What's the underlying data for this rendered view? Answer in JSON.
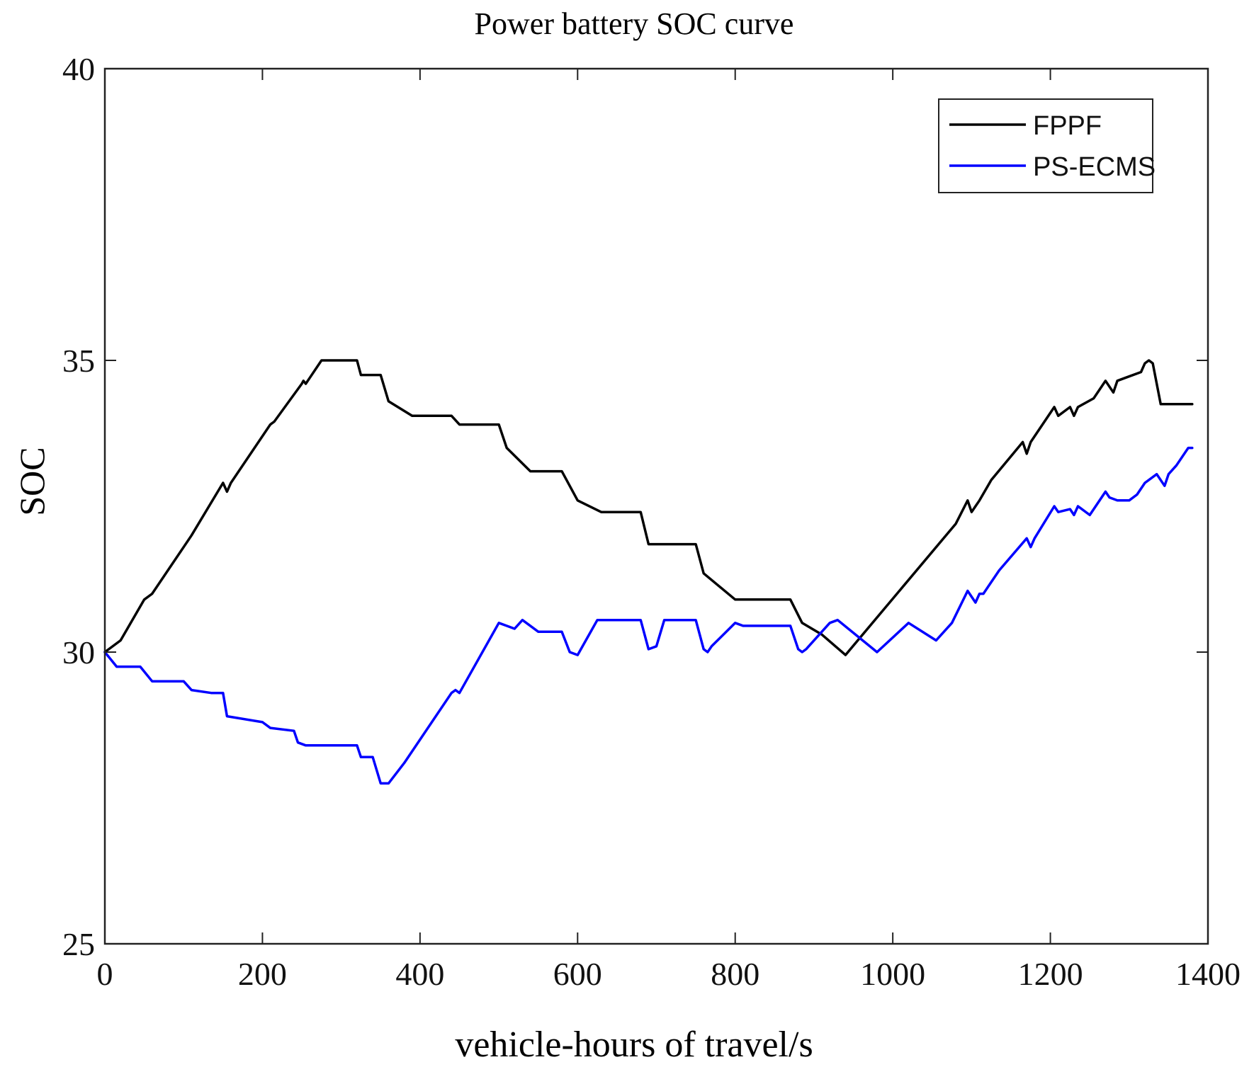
{
  "chart_data": {
    "type": "line",
    "title": "Power battery SOC curve",
    "xlabel": "vehicle-hours of travel/s",
    "ylabel": "SOC",
    "xlim": [
      0,
      1400
    ],
    "ylim": [
      25,
      40
    ],
    "xticks": [
      0,
      200,
      400,
      600,
      800,
      1000,
      1200,
      1400
    ],
    "yticks": [
      25,
      30,
      35,
      40
    ],
    "xtick_labels": [
      "0",
      "200",
      "400",
      "600",
      "800",
      "1000",
      "1200",
      "1400"
    ],
    "ytick_labels": [
      "25",
      "30",
      "35",
      "40"
    ],
    "grid": false,
    "legend_position": "top-right",
    "series": [
      {
        "name": "FPPF",
        "color": "#000000",
        "x": [
          0,
          20,
          50,
          60,
          100,
          110,
          150,
          155,
          160,
          210,
          215,
          250,
          252,
          255,
          260,
          275,
          320,
          325,
          350,
          360,
          390,
          440,
          450,
          500,
          510,
          540,
          580,
          600,
          630,
          680,
          690,
          750,
          760,
          800,
          870,
          885,
          910,
          940,
          1080,
          1095,
          1100,
          1105,
          1110,
          1125,
          1165,
          1170,
          1175,
          1205,
          1210,
          1225,
          1230,
          1235,
          1255,
          1270,
          1280,
          1285,
          1295,
          1315,
          1320,
          1325,
          1330,
          1340,
          1350,
          1380
        ],
        "y": [
          30.0,
          30.2,
          30.9,
          31.0,
          31.8,
          32.0,
          32.9,
          32.75,
          32.9,
          33.9,
          33.95,
          34.6,
          34.65,
          34.6,
          34.7,
          35.0,
          35.0,
          34.75,
          34.75,
          34.3,
          34.05,
          34.05,
          33.9,
          33.9,
          33.5,
          33.1,
          33.1,
          32.6,
          32.4,
          32.4,
          31.85,
          31.85,
          31.35,
          30.9,
          30.9,
          30.5,
          30.3,
          29.95,
          32.2,
          32.6,
          32.4,
          32.5,
          32.6,
          32.95,
          33.6,
          33.4,
          33.6,
          34.2,
          34.05,
          34.2,
          34.05,
          34.2,
          34.35,
          34.65,
          34.45,
          34.65,
          34.7,
          34.8,
          34.95,
          35.0,
          34.95,
          34.25,
          34.25,
          34.25
        ]
      },
      {
        "name": "PS-ECMS",
        "color": "#0000ff",
        "x": [
          0,
          15,
          45,
          60,
          100,
          110,
          135,
          150,
          155,
          200,
          210,
          240,
          245,
          255,
          320,
          325,
          340,
          350,
          360,
          380,
          440,
          445,
          450,
          500,
          510,
          520,
          530,
          550,
          580,
          590,
          600,
          625,
          640,
          680,
          690,
          700,
          710,
          750,
          760,
          765,
          770,
          800,
          810,
          870,
          880,
          885,
          890,
          920,
          930,
          980,
          1020,
          1055,
          1075,
          1095,
          1105,
          1110,
          1115,
          1135,
          1170,
          1175,
          1180,
          1205,
          1210,
          1225,
          1230,
          1235,
          1250,
          1270,
          1275,
          1285,
          1295,
          1300,
          1310,
          1320,
          1335,
          1345,
          1350,
          1360,
          1375,
          1380
        ],
        "y": [
          30.0,
          29.75,
          29.75,
          29.5,
          29.5,
          29.35,
          29.3,
          29.3,
          28.9,
          28.8,
          28.7,
          28.65,
          28.45,
          28.4,
          28.4,
          28.2,
          28.2,
          27.75,
          27.75,
          28.1,
          29.3,
          29.35,
          29.3,
          30.5,
          30.45,
          30.4,
          30.55,
          30.35,
          30.35,
          30.0,
          29.95,
          30.55,
          30.55,
          30.55,
          30.05,
          30.1,
          30.55,
          30.55,
          30.05,
          30.0,
          30.1,
          30.5,
          30.45,
          30.45,
          30.05,
          30.0,
          30.05,
          30.5,
          30.55,
          30.0,
          30.5,
          30.2,
          30.5,
          31.05,
          30.85,
          31.0,
          31.0,
          31.4,
          31.95,
          31.8,
          31.95,
          32.5,
          32.4,
          32.45,
          32.35,
          32.5,
          32.35,
          32.75,
          32.65,
          32.6,
          32.6,
          32.6,
          32.7,
          32.9,
          33.05,
          32.85,
          33.05,
          33.2,
          33.5,
          33.5
        ]
      }
    ]
  }
}
